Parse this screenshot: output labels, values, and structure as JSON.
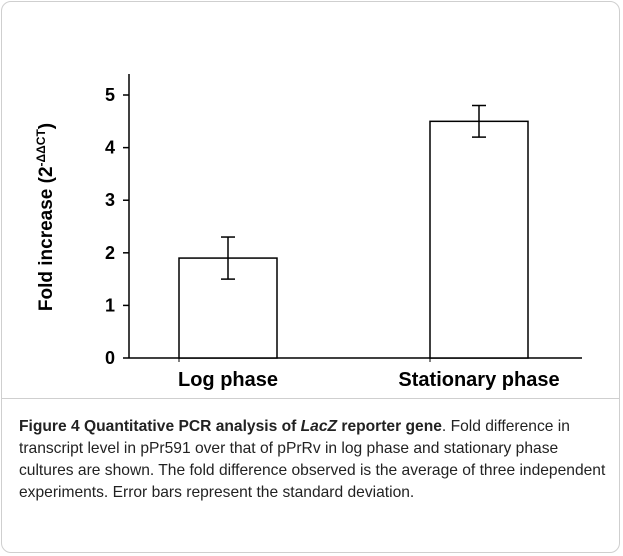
{
  "chart_data": {
    "type": "bar",
    "y_label": {
      "main": "Fold increase  (2",
      "superscript": "-ΔΔCT",
      "close": ")"
    },
    "categories": [
      "Log phase",
      "Stationary phase"
    ],
    "values": [
      1.9,
      4.5
    ],
    "errors": [
      0.4,
      0.3
    ],
    "color": "#ffffff",
    "ylim": [
      0,
      5.4
    ],
    "yticks": [
      0,
      1,
      2,
      3,
      4,
      5
    ],
    "grid": false
  },
  "caption": {
    "label": "Figure 4",
    "title": "Quantitative PCR analysis of ",
    "title_italic": "LacZ",
    "title_end": " reporter gene",
    "text": ". Fold difference in transcript level in pPr591 over that of pPrRv in log phase and stationary phase cultures are shown. The fold difference observed is the average of three independent experiments. Error bars represent the standard deviation."
  }
}
